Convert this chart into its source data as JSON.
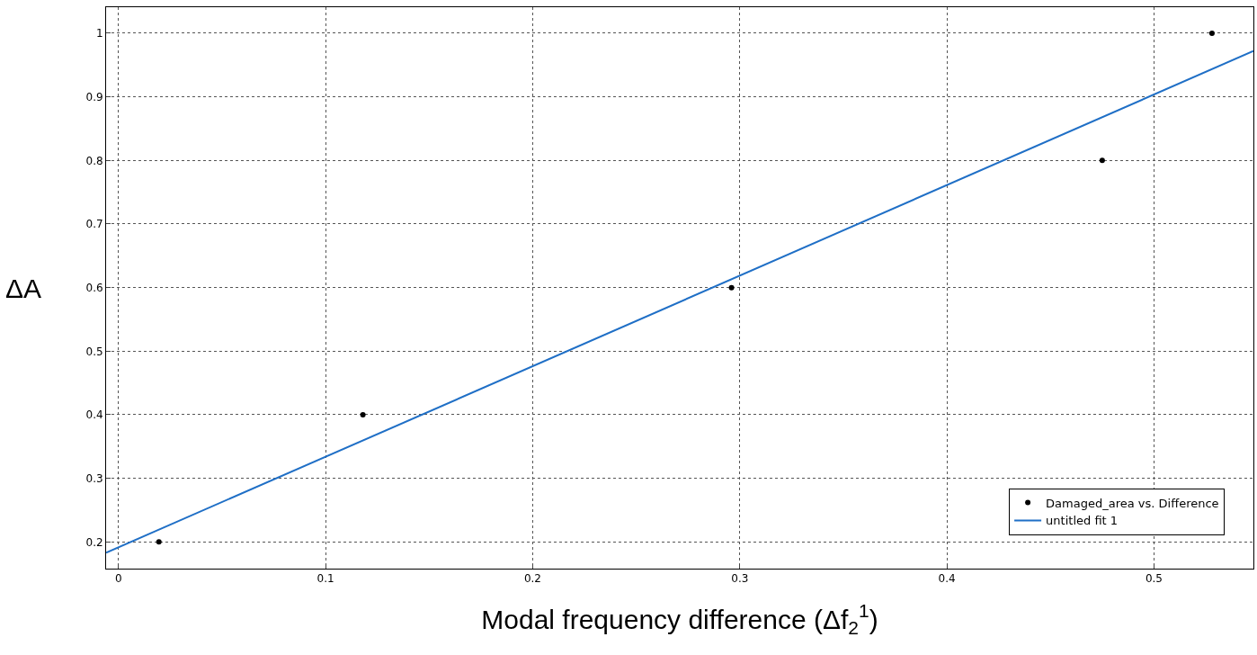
{
  "chart_data": {
    "type": "scatter",
    "xlabel": "Modal frequency difference (Δf$_{2}$$^{1}$)",
    "ylabel": "ΔA",
    "series": [
      {
        "name": "Damaged_area vs. Difference",
        "marker": "circle",
        "color": "#000000",
        "x": [
          0.0195,
          0.118,
          0.296,
          0.475,
          0.528
        ],
        "values": [
          0.2,
          0.4,
          0.6,
          0.8,
          1.0
        ]
      },
      {
        "name": "untitled fit 1",
        "type": "line",
        "marker": "none",
        "line_style": "solid",
        "color": "#1f6fc6",
        "x": [
          -0.006,
          0.548
        ],
        "values": [
          0.183,
          0.972
        ]
      }
    ],
    "xlim": [
      -0.006,
      0.548
    ],
    "ylim": [
      0.158,
      1.041
    ],
    "xticks": [
      0,
      0.1,
      0.2,
      0.3,
      0.4,
      0.5
    ],
    "yticks": [
      0.2,
      0.3,
      0.4,
      0.5,
      0.6,
      0.7,
      0.8,
      0.9,
      1
    ],
    "grid": true,
    "legend": "bottom right"
  }
}
